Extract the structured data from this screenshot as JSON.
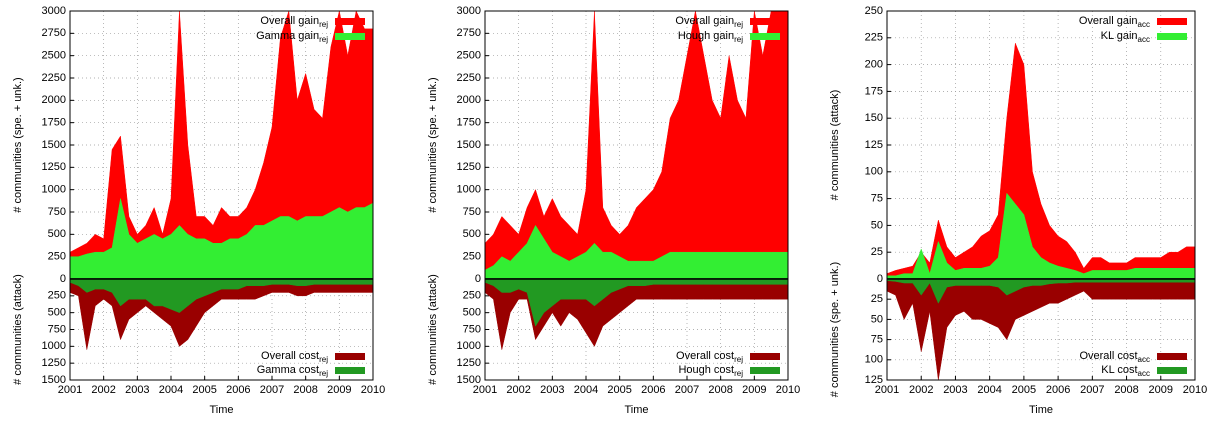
{
  "chart_data": [
    {
      "type": "area",
      "ylabel": "# communities (spe. + unk.)",
      "legend": "upper right",
      "x": [
        2001,
        2001.25,
        2001.5,
        2001.75,
        2002,
        2002.25,
        2002.5,
        2002.75,
        2003,
        2003.25,
        2003.5,
        2003.75,
        2004,
        2004.25,
        2004.5,
        2004.75,
        2005,
        2005.25,
        2005.5,
        2005.75,
        2006,
        2006.25,
        2006.5,
        2006.75,
        2007,
        2007.25,
        2007.5,
        2007.75,
        2008,
        2008.25,
        2008.5,
        2008.75,
        2009,
        2009.25,
        2009.5,
        2009.75,
        2010
      ],
      "xlim": [
        2001,
        2010
      ],
      "xticks": [
        2001,
        2002,
        2003,
        2004,
        2005,
        2006,
        2007,
        2008,
        2009,
        2010
      ],
      "ylim": [
        0,
        3000
      ],
      "yticks": [
        0,
        250,
        500,
        750,
        1000,
        1250,
        1500,
        1750,
        2000,
        2250,
        2500,
        2750,
        3000
      ],
      "grid": true,
      "series": [
        {
          "name": "Overall gain",
          "subscript": "rej",
          "color": "#ff0000",
          "values": [
            300,
            350,
            400,
            500,
            450,
            1450,
            1600,
            700,
            500,
            600,
            800,
            500,
            900,
            3000,
            1500,
            700,
            700,
            600,
            800,
            700,
            700,
            800,
            1000,
            1300,
            1700,
            2700,
            3000,
            2000,
            2300,
            1900,
            1800,
            2600,
            3000,
            2500,
            3000,
            2800,
            2800
          ]
        },
        {
          "name": "Gamma gain",
          "subscript": "rej",
          "color": "#33ee33",
          "values": [
            250,
            250,
            280,
            300,
            300,
            350,
            900,
            500,
            400,
            450,
            500,
            450,
            500,
            600,
            500,
            450,
            450,
            400,
            400,
            450,
            450,
            500,
            600,
            600,
            650,
            700,
            700,
            650,
            700,
            700,
            700,
            750,
            800,
            750,
            800,
            800,
            850
          ]
        }
      ]
    },
    {
      "type": "area",
      "ylabel": "# communities (attack)",
      "xlabel": "Time",
      "legend": "lower right",
      "inverted": true,
      "x": [
        2001,
        2001.25,
        2001.5,
        2001.75,
        2002,
        2002.25,
        2002.5,
        2002.75,
        2003,
        2003.25,
        2003.5,
        2003.75,
        2004,
        2004.25,
        2004.5,
        2004.75,
        2005,
        2005.25,
        2005.5,
        2005.75,
        2006,
        2006.25,
        2006.5,
        2006.75,
        2007,
        2007.25,
        2007.5,
        2007.75,
        2008,
        2008.25,
        2008.5,
        2008.75,
        2009,
        2009.25,
        2009.5,
        2009.75,
        2010
      ],
      "xlim": [
        2001,
        2010
      ],
      "xticks": [
        2001,
        2002,
        2003,
        2004,
        2005,
        2006,
        2007,
        2008,
        2009,
        2010
      ],
      "ylim": [
        0,
        1500
      ],
      "yticks": [
        250,
        500,
        750,
        1000,
        1250,
        1500
      ],
      "grid": true,
      "series": [
        {
          "name": "Overall cost",
          "subscript": "rej",
          "color": "#990000",
          "values": [
            200,
            250,
            1050,
            400,
            300,
            400,
            900,
            600,
            500,
            400,
            500,
            600,
            700,
            1000,
            900,
            700,
            500,
            400,
            300,
            300,
            300,
            300,
            300,
            250,
            200,
            200,
            200,
            250,
            250,
            200,
            200,
            200,
            200,
            200,
            200,
            200,
            200
          ]
        },
        {
          "name": "Gamma cost",
          "subscript": "rej",
          "color": "#229922",
          "values": [
            50,
            100,
            200,
            150,
            150,
            200,
            400,
            300,
            300,
            300,
            400,
            400,
            450,
            500,
            400,
            300,
            250,
            200,
            150,
            150,
            150,
            100,
            100,
            100,
            80,
            80,
            80,
            100,
            100,
            80,
            80,
            80,
            80,
            80,
            80,
            80,
            80
          ]
        }
      ]
    },
    {
      "type": "area",
      "ylabel": "# communities (spe. + unk.)",
      "legend": "upper right",
      "x": [
        2001,
        2001.25,
        2001.5,
        2001.75,
        2002,
        2002.25,
        2002.5,
        2002.75,
        2003,
        2003.25,
        2003.5,
        2003.75,
        2004,
        2004.25,
        2004.5,
        2004.75,
        2005,
        2005.25,
        2005.5,
        2005.75,
        2006,
        2006.25,
        2006.5,
        2006.75,
        2007,
        2007.25,
        2007.5,
        2007.75,
        2008,
        2008.25,
        2008.5,
        2008.75,
        2009,
        2009.25,
        2009.5,
        2009.75,
        2010
      ],
      "xlim": [
        2001,
        2010
      ],
      "xticks": [
        2001,
        2002,
        2003,
        2004,
        2005,
        2006,
        2007,
        2008,
        2009,
        2010
      ],
      "ylim": [
        0,
        3000
      ],
      "yticks": [
        0,
        250,
        500,
        750,
        1000,
        1250,
        1500,
        1750,
        2000,
        2250,
        2500,
        2750,
        3000
      ],
      "grid": true,
      "series": [
        {
          "name": "Overall gain",
          "subscript": "rej",
          "color": "#ff0000",
          "values": [
            400,
            500,
            700,
            600,
            500,
            800,
            1000,
            700,
            900,
            700,
            600,
            500,
            1000,
            3000,
            800,
            600,
            500,
            600,
            800,
            900,
            1000,
            1200,
            1800,
            2000,
            2500,
            3000,
            2500,
            2000,
            1800,
            2500,
            2000,
            1800,
            3000,
            2500,
            3000,
            3000,
            3000
          ]
        },
        {
          "name": "Hough gain",
          "subscript": "rej",
          "color": "#33ee33",
          "values": [
            100,
            150,
            250,
            200,
            300,
            400,
            600,
            450,
            300,
            250,
            200,
            250,
            300,
            400,
            300,
            300,
            250,
            200,
            200,
            200,
            200,
            250,
            300,
            300,
            300,
            300,
            300,
            300,
            300,
            300,
            300,
            300,
            300,
            300,
            300,
            300,
            300
          ]
        }
      ]
    },
    {
      "type": "area",
      "ylabel": "# communities (attack)",
      "xlabel": "Time",
      "legend": "lower right",
      "inverted": true,
      "x": [
        2001,
        2001.25,
        2001.5,
        2001.75,
        2002,
        2002.25,
        2002.5,
        2002.75,
        2003,
        2003.25,
        2003.5,
        2003.75,
        2004,
        2004.25,
        2004.5,
        2004.75,
        2005,
        2005.25,
        2005.5,
        2005.75,
        2006,
        2006.25,
        2006.5,
        2006.75,
        2007,
        2007.25,
        2007.5,
        2007.75,
        2008,
        2008.25,
        2008.5,
        2008.75,
        2009,
        2009.25,
        2009.5,
        2009.75,
        2010
      ],
      "xlim": [
        2001,
        2010
      ],
      "xticks": [
        2001,
        2002,
        2003,
        2004,
        2005,
        2006,
        2007,
        2008,
        2009,
        2010
      ],
      "ylim": [
        0,
        1500
      ],
      "yticks": [
        250,
        500,
        750,
        1000,
        1250,
        1500
      ],
      "grid": true,
      "series": [
        {
          "name": "Overall cost",
          "subscript": "rej",
          "color": "#990000",
          "values": [
            200,
            300,
            1050,
            500,
            300,
            300,
            900,
            700,
            500,
            700,
            500,
            600,
            800,
            1000,
            700,
            600,
            500,
            400,
            300,
            300,
            300,
            300,
            300,
            300,
            300,
            300,
            300,
            300,
            300,
            300,
            300,
            300,
            300,
            300,
            300,
            300,
            300
          ]
        },
        {
          "name": "Hough cost",
          "subscript": "rej",
          "color": "#229922",
          "values": [
            50,
            100,
            200,
            200,
            150,
            200,
            700,
            500,
            400,
            300,
            300,
            300,
            300,
            400,
            300,
            200,
            150,
            100,
            100,
            100,
            80,
            80,
            80,
            80,
            80,
            80,
            80,
            80,
            80,
            80,
            80,
            80,
            80,
            80,
            80,
            80,
            80
          ]
        }
      ]
    },
    {
      "type": "area",
      "ylabel": "# communities (attack)",
      "legend": "upper right",
      "x": [
        2001,
        2001.25,
        2001.5,
        2001.75,
        2002,
        2002.25,
        2002.5,
        2002.75,
        2003,
        2003.25,
        2003.5,
        2003.75,
        2004,
        2004.25,
        2004.5,
        2004.75,
        2005,
        2005.25,
        2005.5,
        2005.75,
        2006,
        2006.25,
        2006.5,
        2006.75,
        2007,
        2007.25,
        2007.5,
        2007.75,
        2008,
        2008.25,
        2008.5,
        2008.75,
        2009,
        2009.25,
        2009.5,
        2009.75,
        2010
      ],
      "xlim": [
        2001,
        2010
      ],
      "xticks": [
        2001,
        2002,
        2003,
        2004,
        2005,
        2006,
        2007,
        2008,
        2009,
        2010
      ],
      "ylim": [
        0,
        250
      ],
      "yticks": [
        0,
        25,
        50,
        75,
        100,
        125,
        150,
        175,
        200,
        225,
        250
      ],
      "grid": true,
      "series": [
        {
          "name": "Overall gain",
          "subscript": "acc",
          "color": "#ff0000",
          "values": [
            5,
            8,
            10,
            12,
            25,
            15,
            55,
            30,
            20,
            25,
            30,
            40,
            45,
            60,
            150,
            220,
            200,
            100,
            70,
            50,
            40,
            35,
            25,
            10,
            20,
            20,
            15,
            15,
            15,
            20,
            20,
            20,
            20,
            25,
            25,
            30,
            30
          ]
        },
        {
          "name": "KL gain",
          "subscript": "acc",
          "color": "#33ee33",
          "values": [
            3,
            3,
            5,
            5,
            28,
            5,
            35,
            15,
            8,
            10,
            10,
            10,
            12,
            20,
            80,
            70,
            60,
            30,
            20,
            15,
            12,
            10,
            8,
            5,
            8,
            8,
            8,
            8,
            8,
            10,
            10,
            10,
            10,
            10,
            10,
            10,
            10
          ]
        }
      ]
    },
    {
      "type": "area",
      "ylabel": "# communities (spe. + unk.)",
      "xlabel": "Time",
      "legend": "lower right",
      "inverted": true,
      "x": [
        2001,
        2001.25,
        2001.5,
        2001.75,
        2002,
        2002.25,
        2002.5,
        2002.75,
        2003,
        2003.25,
        2003.5,
        2003.75,
        2004,
        2004.25,
        2004.5,
        2004.75,
        2005,
        2005.25,
        2005.5,
        2005.75,
        2006,
        2006.25,
        2006.5,
        2006.75,
        2007,
        2007.25,
        2007.5,
        2007.75,
        2008,
        2008.25,
        2008.5,
        2008.75,
        2009,
        2009.25,
        2009.5,
        2009.75,
        2010
      ],
      "xlim": [
        2001,
        2010
      ],
      "xticks": [
        2001,
        2002,
        2003,
        2004,
        2005,
        2006,
        2007,
        2008,
        2009,
        2010
      ],
      "ylim": [
        0,
        125
      ],
      "yticks": [
        25,
        50,
        75,
        100,
        125
      ],
      "grid": true,
      "series": [
        {
          "name": "Overall cost",
          "subscript": "acc",
          "color": "#990000",
          "values": [
            15,
            20,
            50,
            30,
            90,
            40,
            125,
            60,
            45,
            40,
            50,
            50,
            55,
            60,
            75,
            50,
            45,
            40,
            35,
            30,
            30,
            25,
            20,
            15,
            25,
            25,
            25,
            25,
            25,
            25,
            25,
            25,
            25,
            25,
            25,
            25,
            25
          ]
        },
        {
          "name": "KL cost",
          "subscript": "acc",
          "color": "#229922",
          "values": [
            2,
            3,
            5,
            5,
            20,
            5,
            30,
            10,
            8,
            8,
            8,
            8,
            8,
            10,
            20,
            15,
            10,
            8,
            8,
            6,
            5,
            5,
            4,
            4,
            4,
            4,
            4,
            4,
            4,
            4,
            4,
            4,
            4,
            4,
            4,
            4,
            4
          ]
        }
      ]
    }
  ]
}
